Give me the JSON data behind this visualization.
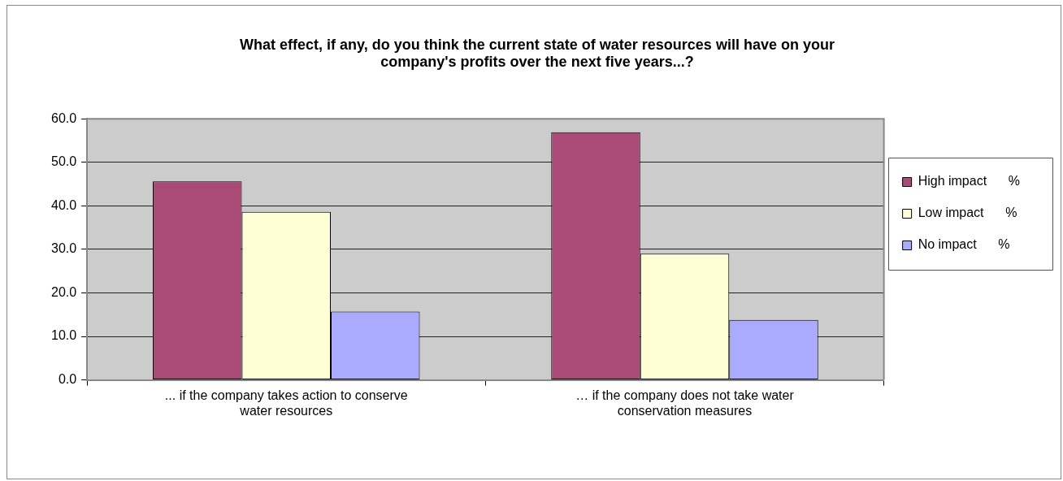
{
  "chart_data": {
    "type": "bar",
    "title": "What effect, if any, do you think the current state of water resources will have on your company's profits over the next five years...?",
    "categories": [
      "... if the company takes action to conserve water resources",
      "… if the company does not take water conservation measures"
    ],
    "series": [
      {
        "name": "High impact      %",
        "color": "#aa4a76",
        "values": [
          45.6,
          56.9
        ]
      },
      {
        "name": "Low impact      %",
        "color": "#ffffd6",
        "values": [
          38.6,
          29.0
        ]
      },
      {
        "name": "No impact      %",
        "color": "#aaaaff",
        "values": [
          15.7,
          13.8
        ]
      }
    ],
    "ylim": [
      0,
      60
    ],
    "yticks": [
      {
        "value": 0,
        "label": "0.0"
      },
      {
        "value": 10,
        "label": "10.0"
      },
      {
        "value": 20,
        "label": "20.0"
      },
      {
        "value": 30,
        "label": "30.0"
      },
      {
        "value": 40,
        "label": "40.0"
      },
      {
        "value": 50,
        "label": "50.0"
      },
      {
        "value": 60,
        "label": "60.0"
      }
    ],
    "grid": "y",
    "legend": "right"
  }
}
